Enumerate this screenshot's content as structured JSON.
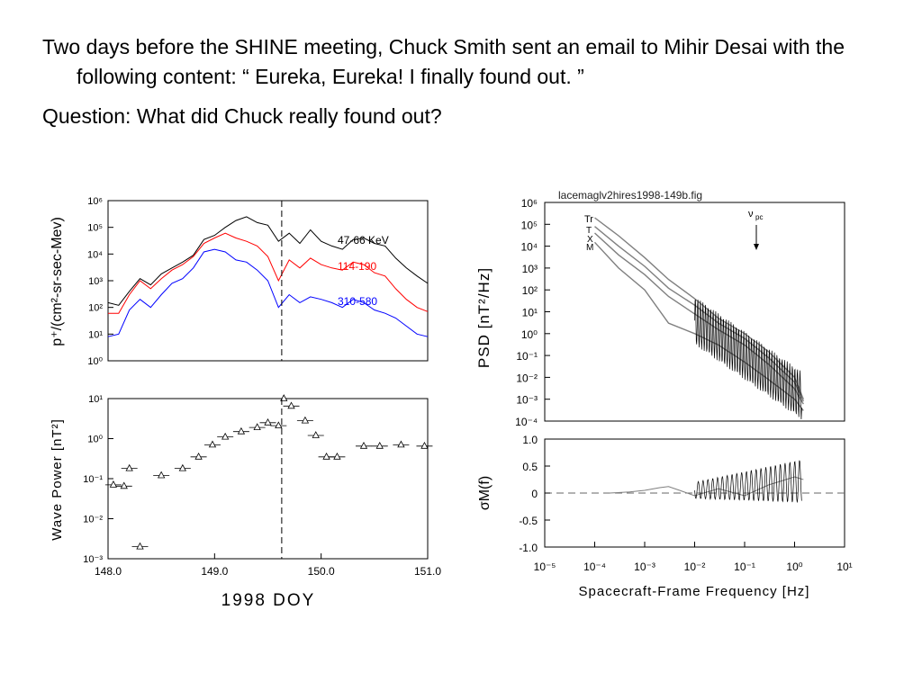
{
  "slide": {
    "paragraph1": "Two days before the SHINE meeting, Chuck Smith sent an email to Mihir Desai with the following content: “ Eureka, Eureka! I finally found out. ”",
    "paragraph2": "Question: What did Chuck really found out?"
  },
  "colors": {
    "black_series": "#000000",
    "red_series": "#ff0000",
    "blue_series": "#0000ff",
    "axis": "#000000",
    "light_curve": "#7f7f7f"
  },
  "chart_data": [
    {
      "type": "line",
      "ylabel": "p⁺/(cm²-sr-sec-Mev)",
      "y_scale": "log",
      "ylim": [
        1,
        1000000
      ],
      "y_ticks": [
        "10⁰",
        "10¹",
        "10²",
        "10³",
        "10⁴",
        "10⁵",
        "10⁶"
      ],
      "xlim": [
        148.0,
        151.0
      ],
      "x": [
        148.0,
        148.1,
        148.2,
        148.3,
        148.4,
        148.5,
        148.6,
        148.7,
        148.8,
        148.9,
        149.0,
        149.1,
        149.2,
        149.3,
        149.4,
        149.5,
        149.6,
        149.7,
        149.8,
        149.9,
        150.0,
        150.1,
        150.2,
        150.3,
        150.4,
        150.5,
        150.6,
        150.7,
        150.8,
        150.9,
        151.0
      ],
      "series": [
        {
          "name": "47-66 KeV",
          "color": "#000000",
          "values": [
            150,
            120,
            400,
            1200,
            700,
            1800,
            3000,
            5000,
            9000,
            35000,
            50000,
            100000,
            180000,
            250000,
            150000,
            120000,
            30000,
            60000,
            25000,
            80000,
            30000,
            20000,
            15000,
            35000,
            40000,
            25000,
            20000,
            7000,
            3000,
            1500,
            800
          ]
        },
        {
          "name": "114-190",
          "color": "#ff0000",
          "values": [
            60,
            60,
            300,
            1000,
            500,
            1200,
            2500,
            4000,
            8000,
            25000,
            40000,
            60000,
            40000,
            30000,
            20000,
            8000,
            1000,
            6000,
            3000,
            7000,
            4000,
            3000,
            2500,
            5000,
            4000,
            2000,
            1500,
            500,
            200,
            100,
            70
          ]
        },
        {
          "name": "310-580",
          "color": "#0000ff",
          "values": [
            8,
            10,
            80,
            200,
            100,
            300,
            800,
            1200,
            3000,
            12000,
            15000,
            12000,
            6000,
            5000,
            2500,
            1000,
            100,
            300,
            150,
            250,
            200,
            150,
            100,
            200,
            150,
            80,
            60,
            40,
            20,
            10,
            8
          ]
        }
      ],
      "marker_x": 149.63
    },
    {
      "type": "scatter",
      "ylabel": "Wave Power [nT²]",
      "xlabel": "1998 DOY",
      "y_scale": "log",
      "ylim": [
        0.001,
        10
      ],
      "y_ticks": [
        "10⁻³",
        "10⁻²",
        "10⁻¹",
        "10⁰",
        "10¹"
      ],
      "xlim": [
        148.0,
        151.0
      ],
      "x_ticks": [
        "148.0",
        "149.0",
        "150.0",
        "151.0"
      ],
      "x_tick_values": [
        148.0,
        149.0,
        150.0,
        151.0
      ],
      "x": [
        148.05,
        148.15,
        148.2,
        148.3,
        148.5,
        148.7,
        148.85,
        148.98,
        149.1,
        149.25,
        149.4,
        149.5,
        149.6,
        149.65,
        149.72,
        149.85,
        149.95,
        150.05,
        150.15,
        150.4,
        150.55,
        150.75,
        150.97
      ],
      "values": [
        0.07,
        0.065,
        0.18,
        0.002,
        0.12,
        0.18,
        0.35,
        0.7,
        1.1,
        1.5,
        1.9,
        2.5,
        2.1,
        10,
        6.5,
        2.8,
        1.2,
        0.35,
        0.35,
        0.65,
        0.65,
        0.7,
        0.65
      ],
      "marker_x": 149.63
    },
    {
      "type": "line",
      "title": "lacemaglv2hires1998-149b.fig",
      "ylabel": "PSD [nT²/Hz]",
      "y_scale": "log",
      "x_scale": "log",
      "ylim": [
        0.0001,
        1000000
      ],
      "y_ticks": [
        "10⁶",
        "10⁵",
        "10⁴",
        "10³",
        "10²",
        "10¹",
        "10⁰",
        "10⁻¹",
        "10⁻²",
        "10⁻³",
        "10⁻⁴"
      ],
      "xlim": [
        1e-05,
        10
      ],
      "annotations": [
        "Tr",
        "ν",
        "pc",
        "T",
        "X",
        "M"
      ],
      "x": [
        0.0001,
        0.0003,
        0.001,
        0.003,
        0.01,
        0.03,
        0.1,
        0.3,
        1,
        1.5
      ],
      "series": [
        {
          "name": "Tr",
          "values": [
            200000,
            30000,
            3000,
            300,
            40,
            5,
            1,
            0.15,
            0.01,
            0.001
          ]
        },
        {
          "name": "T",
          "values": [
            80000,
            10000,
            1200,
            120,
            20,
            3,
            0.6,
            0.08,
            0.006,
            0.0008
          ]
        },
        {
          "name": "X",
          "values": [
            40000,
            4000,
            500,
            50,
            8,
            1.5,
            0.3,
            0.04,
            0.003,
            0.0006
          ]
        },
        {
          "name": "M",
          "values": [
            15000,
            1000,
            100,
            3,
            1,
            0.3,
            0.05,
            0.008,
            0.001,
            0.0003
          ]
        }
      ]
    },
    {
      "type": "line",
      "ylabel": "σM(f)",
      "xlabel": "Spacecraft-Frame Frequency [Hz]",
      "x_scale": "log",
      "xlim": [
        1e-05,
        10
      ],
      "ylim": [
        -1.0,
        1.0
      ],
      "y_ticks": [
        "1.0",
        "0.5",
        "0",
        "-0.5",
        "-1.0"
      ],
      "x_ticks": [
        "10⁻⁵",
        "10⁻⁴",
        "10⁻³",
        "10⁻²",
        "10⁻¹",
        "10⁰",
        "10¹"
      ],
      "x": [
        0.0002,
        0.0005,
        0.001,
        0.002,
        0.003,
        0.005,
        0.01,
        0.03,
        0.1,
        0.3,
        1,
        1.5
      ],
      "values": [
        0,
        0.02,
        0.05,
        0.1,
        0.12,
        0.05,
        -0.05,
        0.08,
        -0.05,
        0.15,
        0.3,
        0.25
      ]
    }
  ]
}
